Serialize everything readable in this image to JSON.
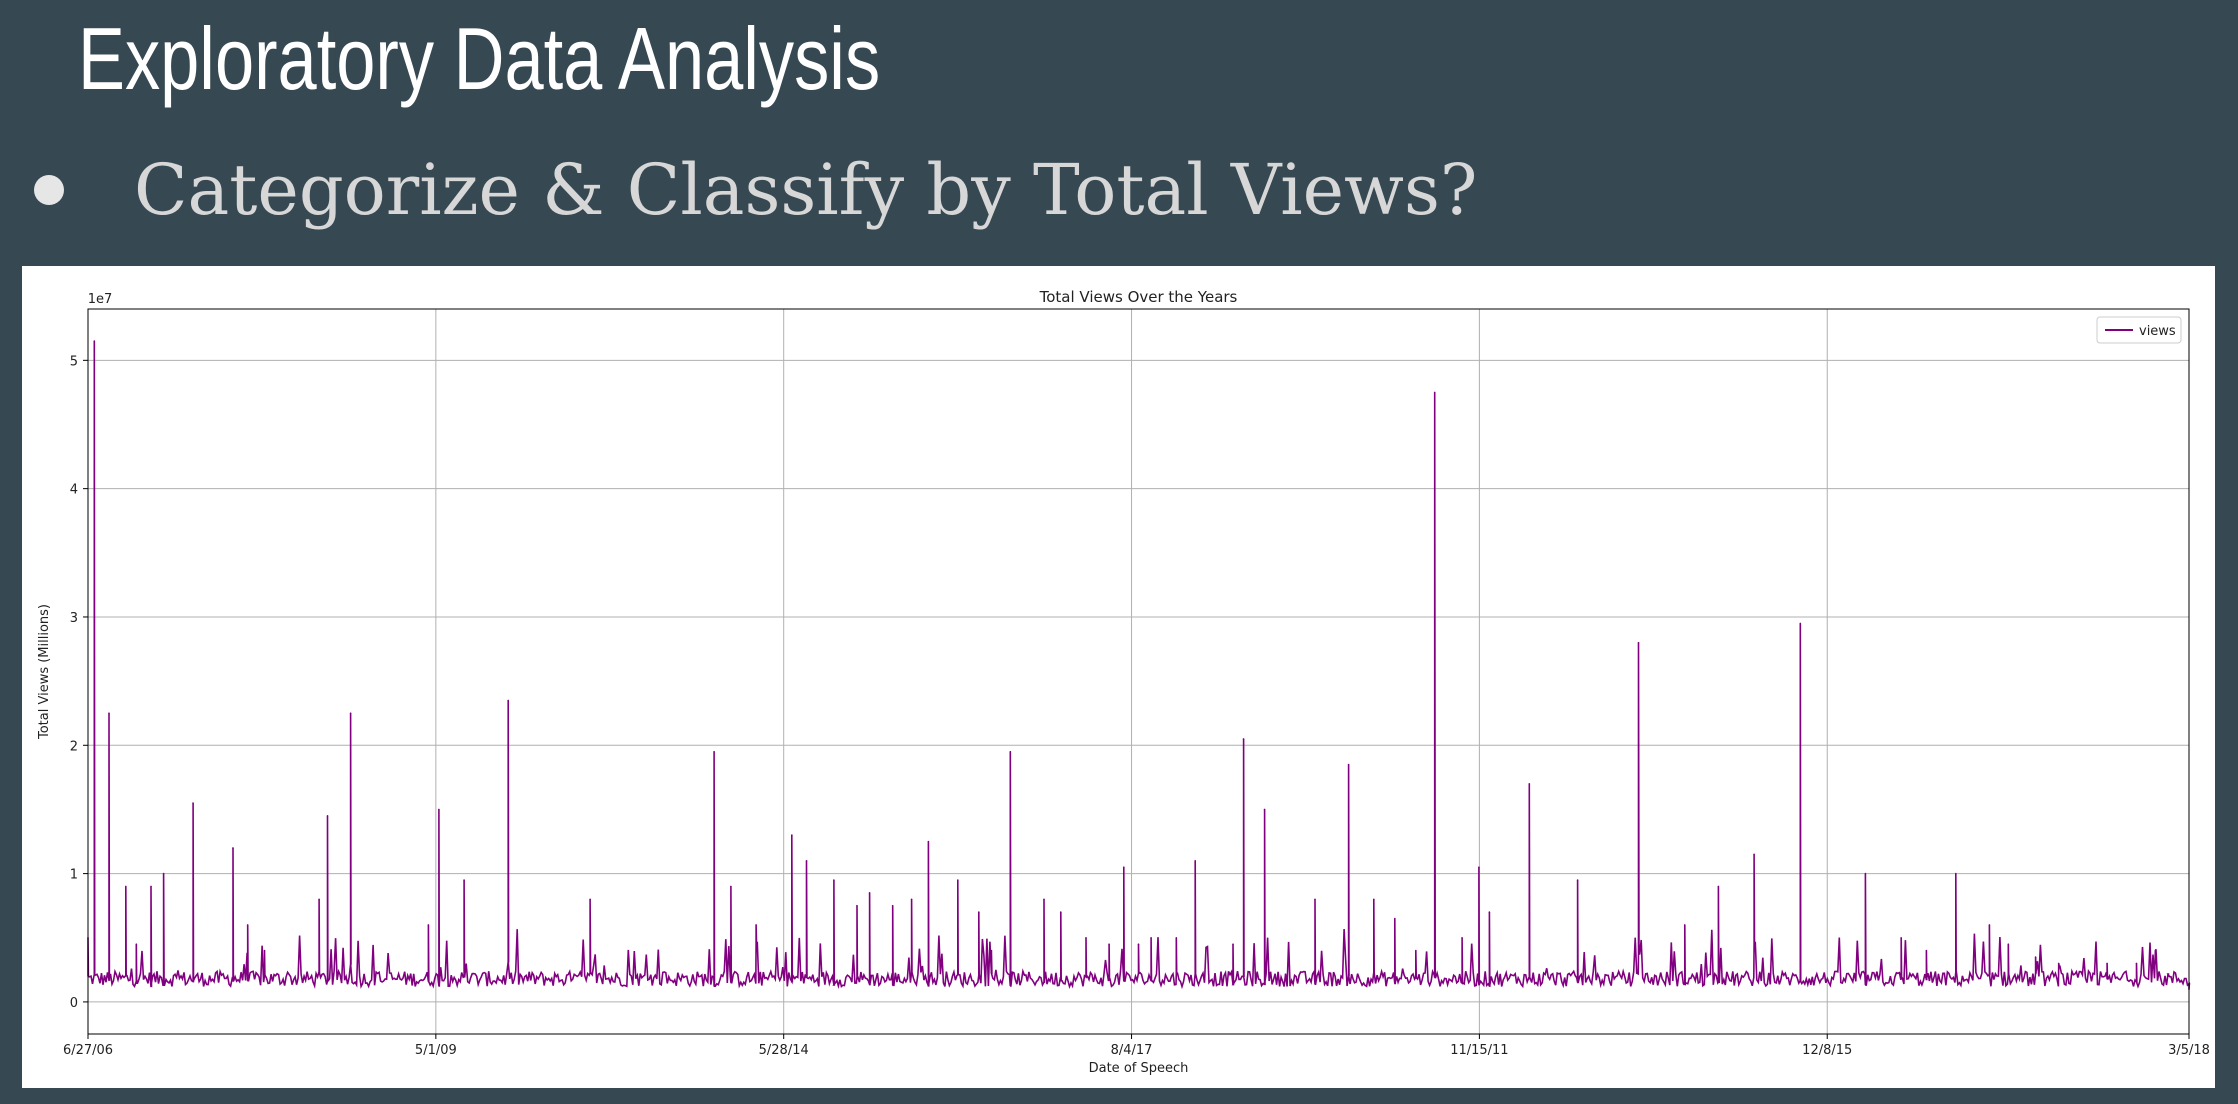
{
  "slide": {
    "title": "Exploratory Data Analysis",
    "bullet": "Categorize & Classify by Total Views?"
  },
  "colors": {
    "background": "#364852",
    "series": "#800080",
    "grid": "#b0b0b0"
  },
  "chart_data": {
    "type": "line",
    "title": "Total Views Over the Years",
    "xlabel": "Date of Speech",
    "ylabel": "Total Views (Millions)",
    "y_offset_label": "1e7",
    "x_tick_labels": [
      "6/27/06",
      "5/1/09",
      "5/28/14",
      "8/4/17",
      "11/15/11",
      "12/8/15",
      "3/5/18"
    ],
    "y_ticks": [
      0,
      1,
      2,
      3,
      4,
      5
    ],
    "ylim": [
      -0.25,
      5.4
    ],
    "grid": true,
    "legend_position": "top-right",
    "series": [
      {
        "name": "views",
        "x": [
          0.0,
          0.3,
          1.0,
          1.8,
          2.3,
          3.0,
          3.6,
          5.0,
          6.9,
          7.6,
          8.4,
          11.0,
          11.4,
          12.5,
          16.2,
          16.7,
          17.9,
          20.0,
          23.9,
          29.8,
          30.6,
          31.8,
          33.5,
          34.2,
          35.5,
          36.6,
          37.2,
          38.3,
          39.2,
          40.0,
          41.4,
          42.4,
          43.0,
          43.9,
          45.5,
          46.3,
          47.5,
          48.6,
          49.3,
          50.0,
          50.6,
          51.8,
          52.7,
          54.5,
          55.0,
          56.0,
          58.4,
          60.0,
          61.2,
          62.2,
          63.2,
          64.1,
          65.4,
          66.2,
          66.7,
          68.6,
          70.9,
          73.8,
          76.0,
          77.6,
          79.3,
          81.5,
          84.6,
          86.3,
          87.5,
          88.9,
          90.5,
          91.4,
          92.7,
          93.8,
          96.1,
          97.5,
          98.4,
          99.0,
          100.0
        ],
        "values": [
          0.5,
          5.15,
          2.25,
          0.9,
          0.45,
          0.9,
          1.0,
          1.55,
          1.2,
          0.6,
          0.4,
          0.8,
          1.45,
          2.25,
          0.6,
          1.5,
          0.95,
          2.35,
          0.8,
          1.95,
          0.9,
          0.6,
          1.3,
          1.1,
          0.95,
          0.75,
          0.85,
          0.75,
          0.8,
          1.25,
          0.95,
          0.7,
          0.4,
          1.95,
          0.8,
          0.7,
          0.5,
          0.45,
          1.05,
          0.45,
          0.5,
          0.5,
          1.1,
          0.45,
          2.05,
          1.5,
          0.8,
          1.85,
          0.8,
          0.65,
          0.4,
          4.75,
          0.5,
          1.05,
          0.7,
          1.7,
          0.95,
          2.8,
          0.6,
          0.9,
          1.15,
          2.95,
          1.0,
          0.5,
          0.4,
          1.0,
          0.6,
          0.45,
          0.35,
          0.3,
          0.3,
          0.3,
          0.3,
          0.2,
          0.1
        ],
        "baseline": 0.12
      }
    ]
  }
}
